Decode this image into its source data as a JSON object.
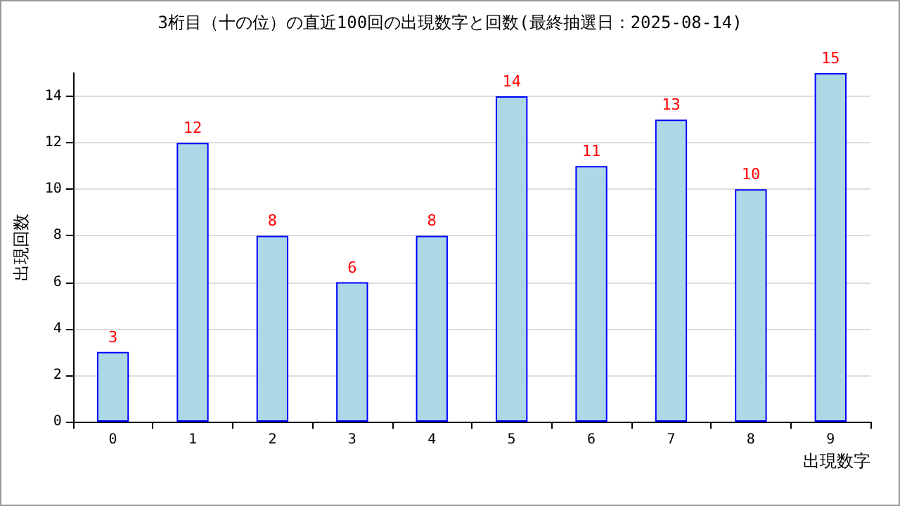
{
  "chart_data": {
    "type": "bar",
    "title": "3桁目（十の位）の直近100回の出現数字と回数(最終抽選日：2025-08-14)",
    "categories": [
      "0",
      "1",
      "2",
      "3",
      "4",
      "5",
      "6",
      "7",
      "8",
      "9"
    ],
    "values": [
      3,
      12,
      8,
      6,
      8,
      14,
      11,
      13,
      10,
      15
    ],
    "color": "#add8e6",
    "xlabel": "出現数字",
    "ylabel": "出現回数",
    "ylim": [
      0,
      15
    ],
    "yticks": [
      0,
      2,
      4,
      6,
      8,
      10,
      12,
      14
    ],
    "grid": "y",
    "data_labels": true
  }
}
